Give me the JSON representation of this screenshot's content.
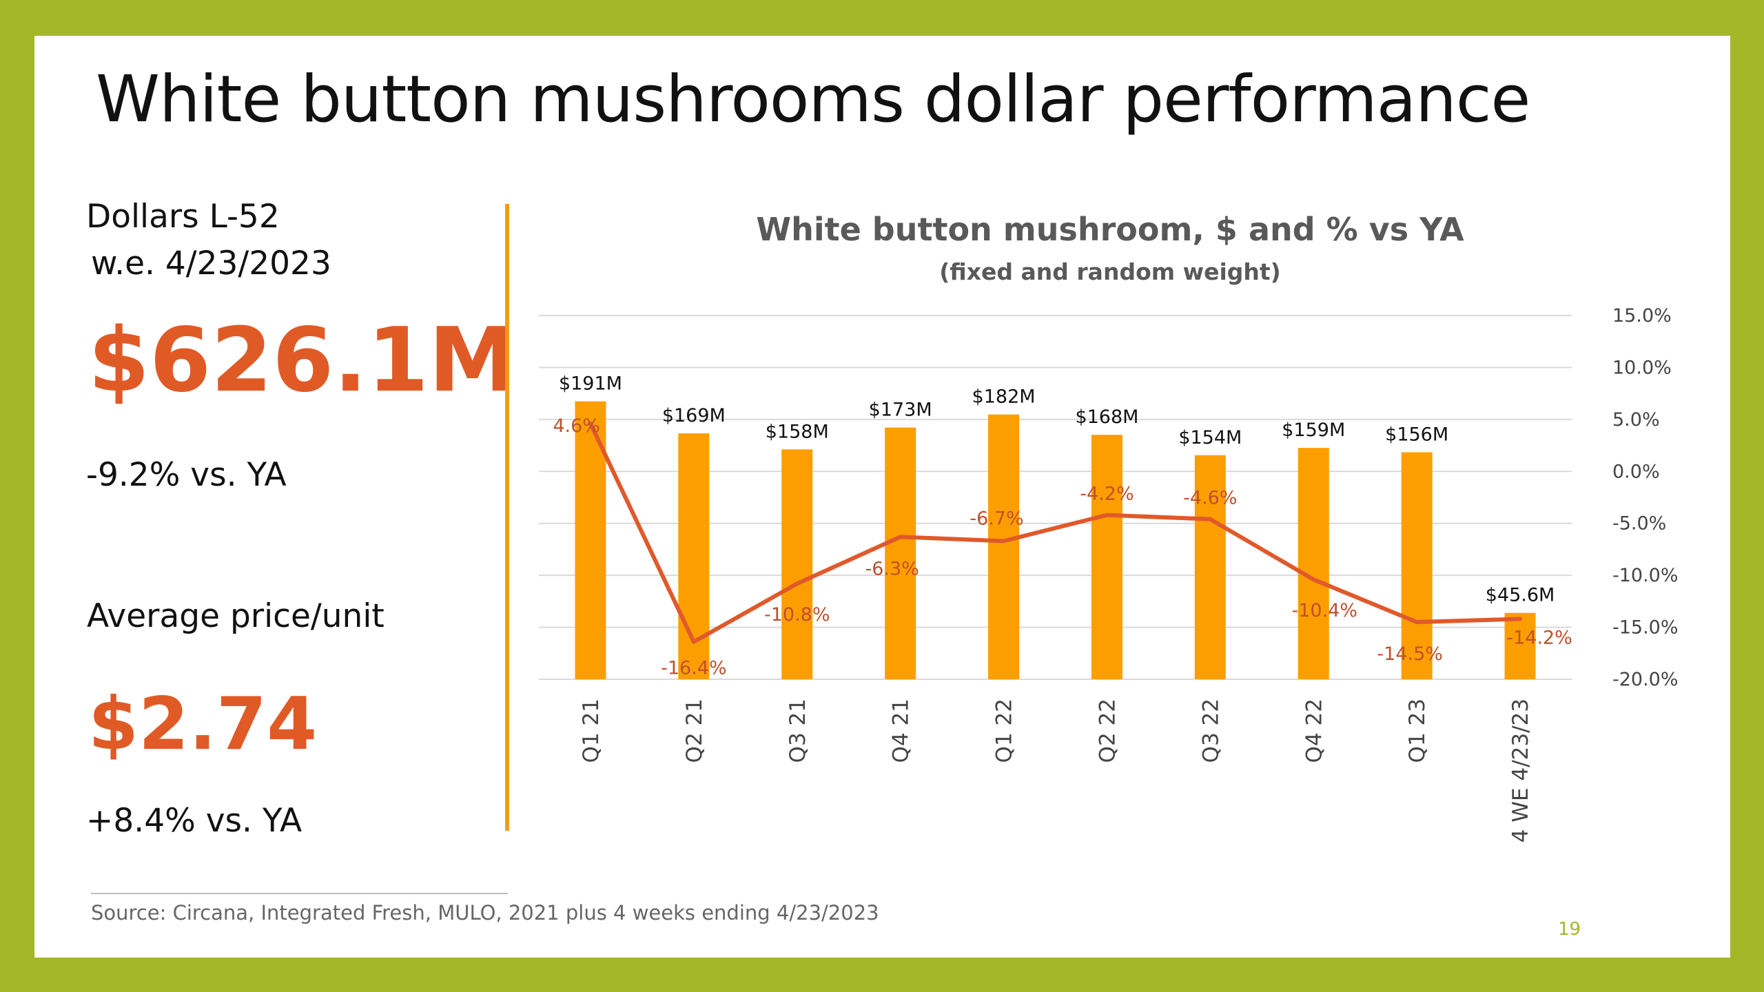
{
  "slide": {
    "title": "White button mushrooms dollar performance",
    "left_panel": {
      "dollars_label_line1": "Dollars L-52",
      "dollars_label_line2": "w.e. 4/23/2023",
      "dollars_value": "$626.1M",
      "dollars_change": "-9.2% vs. YA",
      "price_label": "Average price/unit",
      "price_value": "$2.74",
      "price_change": "+8.4% vs. YA"
    },
    "source": "Source: Circana, Integrated Fresh, MULO, 2021 plus 4 weeks ending 4/23/2023",
    "page_number": "19"
  },
  "colors": {
    "border": "#a4b729",
    "bar": "#fd9e00",
    "line": "#e0592b",
    "accent_text": "#e05a26",
    "divider": "#f29c1b"
  },
  "chart_data": {
    "type": "bar",
    "title": "White button mushroom, $ and % vs YA",
    "subtitle": "(fixed and random weight)",
    "categories": [
      "Q1 21",
      "Q2 21",
      "Q3 21",
      "Q4 21",
      "Q1 22",
      "Q2 22",
      "Q3 22",
      "Q4 22",
      "Q1 23",
      "4 WE 4/23/23"
    ],
    "series": [
      {
        "type": "bar",
        "values": [
          191,
          169,
          158,
          173,
          182,
          168,
          154,
          159,
          156,
          45.6
        ],
        "labels": [
          "$191M",
          "$169M",
          "$158M",
          "$173M",
          "$182M",
          "$168M",
          "$154M",
          "$159M",
          "$156M",
          "$45.6M"
        ],
        "color": "#fd9e00",
        "axis": "left"
      },
      {
        "type": "line",
        "values": [
          4.6,
          -16.4,
          -10.8,
          -6.3,
          -6.7,
          -4.2,
          -4.6,
          -10.4,
          -14.5,
          -14.2
        ],
        "labels": [
          "4.6%",
          "-16.4%",
          "-10.8%",
          "-6.3%",
          "-6.7%",
          "-4.2%",
          "-4.6%",
          "-10.4%",
          "-14.5%",
          "-14.2%"
        ],
        "color": "#e0592b",
        "axis": "right"
      }
    ],
    "y_left_range": [
      0,
      250
    ],
    "y_right_range": [
      -20,
      15
    ],
    "y_right_ticks": [
      "15.0%",
      "10.0%",
      "5.0%",
      "0.0%",
      "-5.0%",
      "-10.0%",
      "-15.0%",
      "-20.0%"
    ],
    "grid": true,
    "legend": "none"
  }
}
